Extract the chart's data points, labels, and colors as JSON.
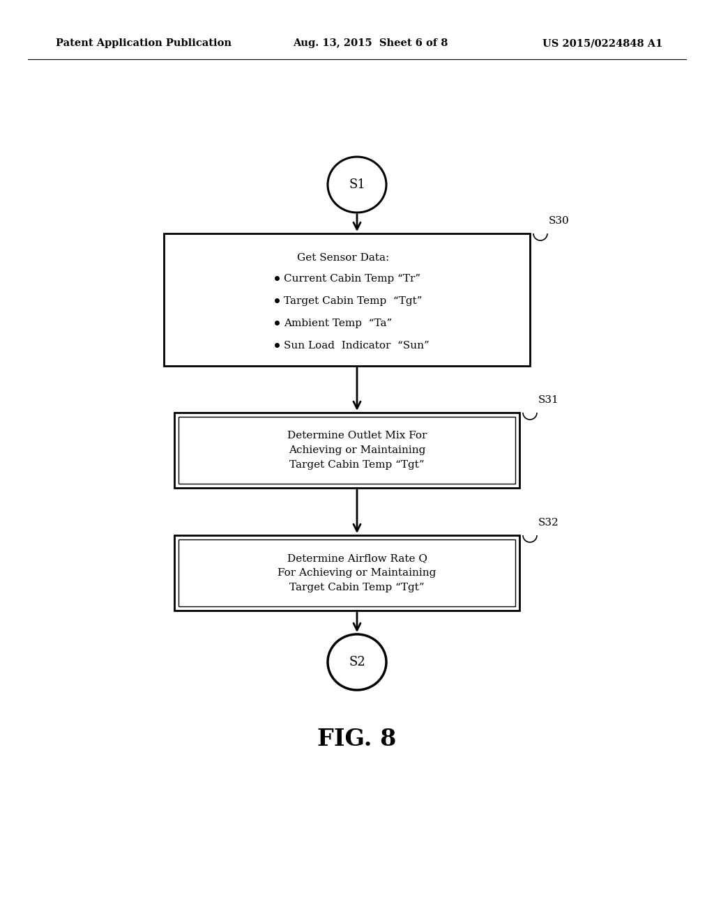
{
  "background_color": "#ffffff",
  "header_left": "Patent Application Publication",
  "header_center": "Aug. 13, 2015  Sheet 6 of 8",
  "header_right": "US 2015/0224848 A1",
  "header_fontsize": 10.5,
  "figure_label": "FIG. 8",
  "figure_label_fontsize": 24,
  "s1_label": "S1",
  "s2_label": "S2",
  "box_s30_label": "S30",
  "box_s31_label": "S31",
  "box_s32_label": "S32",
  "box_s30_text_title": "Get Sensor Data:",
  "box_s30_bullets": [
    "Current Cabin Temp “Tr”",
    "Target Cabin Temp  “Tgt”",
    "Ambient Temp  “Ta”",
    "Sun Load  Indicator  “Sun”"
  ],
  "box_s31_text": "Determine Outlet Mix For\nAchieving or Maintaining\nTarget Cabin Temp “Tgt”",
  "box_s32_text": "Determine Airflow Rate Q\nFor Achieving or Maintaining\nTarget Cabin Temp “Tgt”",
  "text_fontsize": 11,
  "label_fontsize": 11
}
